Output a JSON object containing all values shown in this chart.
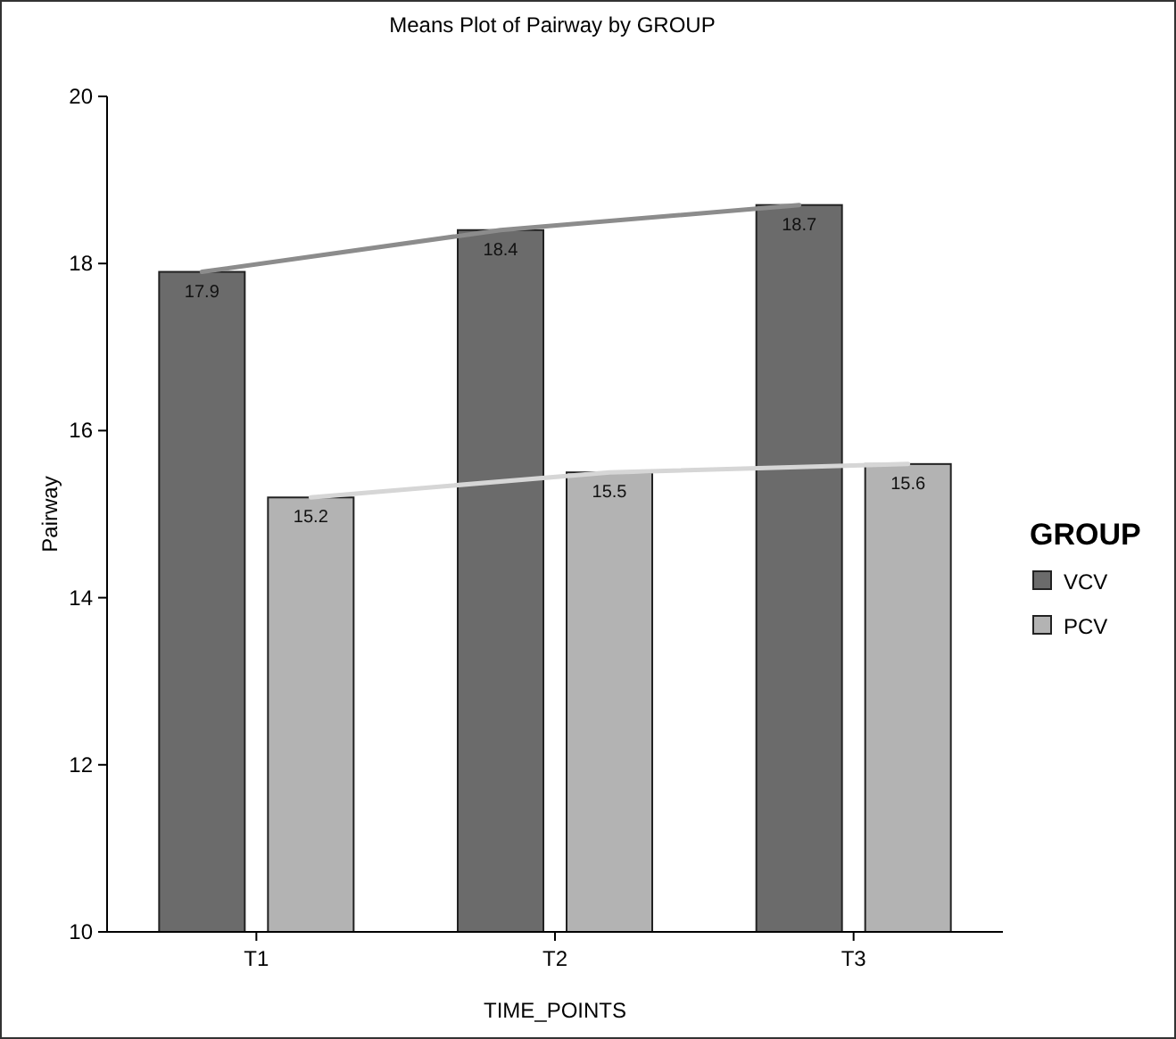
{
  "chart_data": {
    "type": "bar",
    "title": "Means Plot of Pairway by GROUP",
    "xlabel": "TIME_POINTS",
    "ylabel": "Pairway",
    "legend_title": "GROUP",
    "categories": [
      "T1",
      "T2",
      "T3"
    ],
    "series": [
      {
        "name": "VCV",
        "color": "#6b6b6b",
        "values": [
          17.9,
          18.4,
          18.7
        ],
        "value_labels": [
          "17.9",
          "18.4",
          "18.7"
        ]
      },
      {
        "name": "PCV",
        "color": "#b3b3b3",
        "values": [
          15.2,
          15.5,
          15.6
        ],
        "value_labels": [
          "15.2",
          "15.5",
          "15.6"
        ]
      },
      {
        "type": "line",
        "color": "#8c8c8c",
        "values": [
          17.9,
          18.4,
          18.7
        ]
      },
      {
        "type": "line",
        "color": "#d6d6d6",
        "values": [
          15.2,
          15.5,
          15.6
        ]
      }
    ],
    "ylim": [
      10,
      20
    ],
    "yticks": [
      10,
      12,
      14,
      16,
      18,
      20
    ],
    "legend": "right"
  }
}
